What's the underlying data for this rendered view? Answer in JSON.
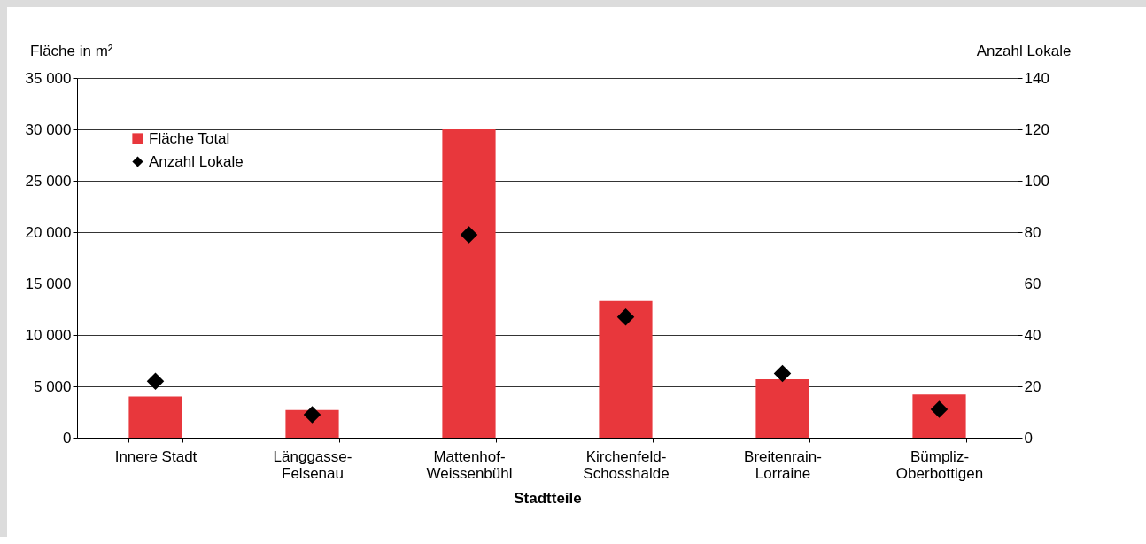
{
  "chart_data": {
    "type": "bar",
    "xlabel": "Stadtteile",
    "ylabel": "Fläche in m²",
    "y2label": "Anzahl Lokale",
    "categories": [
      "Innere Stadt",
      "Länggasse-Felsenau",
      "Mattenhof-Weissenbühl",
      "Kirchenfeld-Schosshalde",
      "Breitenrain-Lorraine",
      "Bümpliz-Oberbottigen"
    ],
    "series": [
      {
        "name": "Fläche Total",
        "color": "#e8373c",
        "values": [
          4000,
          2700,
          30000,
          13300,
          5700,
          4200
        ]
      },
      {
        "name": "Anzahl Lokale",
        "type": "scatter",
        "axis": "y2",
        "color": "#000000",
        "values": [
          22,
          9,
          79,
          47,
          25,
          11
        ]
      }
    ],
    "ylim": [
      0,
      35000
    ],
    "yticks": [
      0,
      {
        "value": 5000,
        "label": "5 000"
      },
      {
        "value": 10000,
        "label": "10 000"
      },
      {
        "value": 15000,
        "label": "15 000"
      },
      {
        "value": 20000,
        "label": "20 000"
      },
      {
        "value": 25000,
        "label": "25 000"
      },
      {
        "value": 30000,
        "label": "30 000"
      },
      {
        "value": 35000,
        "label": "35 000"
      }
    ],
    "y2lim": [
      0,
      140
    ],
    "y2ticks": [
      0,
      20,
      40,
      60,
      80,
      100,
      120,
      140
    ],
    "grid": "y",
    "legend": "top left",
    "marker": "diamond"
  }
}
